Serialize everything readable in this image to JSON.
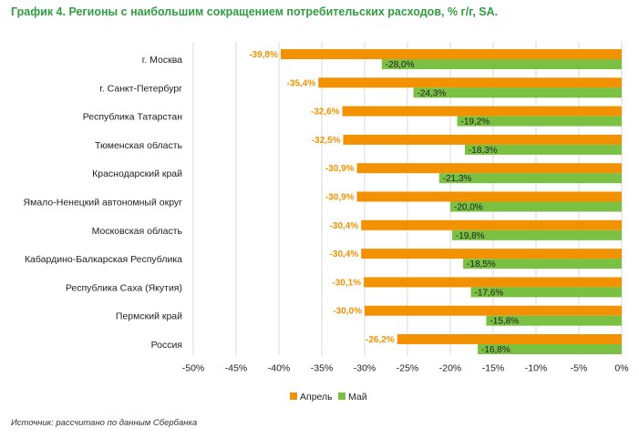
{
  "title": "График 4. Регионы с наибольшим сокращением потребительских расходов, % г/г, SA.",
  "source_note": "Источник: рассчитано по данным Сбербанка",
  "colors": {
    "april": "#f39200",
    "may": "#7ac143",
    "title": "#2e9e3f",
    "grid": "#d9d9d9"
  },
  "chart_data": {
    "type": "bar",
    "orientation": "horizontal",
    "categories": [
      "г. Москва",
      "г. Санкт-Петербург",
      "Республика Татарстан",
      "Тюменская область",
      "Краснодарский край",
      "Ямало-Ненецкий автономный округ",
      "Московская область",
      "Кабардино-Балкарская Республика",
      "Республика Саха (Якутия)",
      "Пермский край",
      "Россия"
    ],
    "series": [
      {
        "name": "Апрель",
        "values": [
          -39.8,
          -35.4,
          -32.6,
          -32.5,
          -30.9,
          -30.9,
          -30.4,
          -30.4,
          -30.1,
          -30.0,
          -26.2
        ],
        "labels": [
          "-39,8%",
          "-35,4%",
          "-32,6%",
          "-32,5%",
          "-30,9%",
          "-30,9%",
          "-30,4%",
          "-30,4%",
          "-30,1%",
          "-30,0%",
          "-26,2%"
        ]
      },
      {
        "name": "Май",
        "values": [
          -28.0,
          -24.3,
          -19.2,
          -18.3,
          -21.3,
          -20.0,
          -19.8,
          -18.5,
          -17.6,
          -15.8,
          -16.8
        ],
        "labels": [
          "-28,0%",
          "-24,3%",
          "-19,2%",
          "-18,3%",
          "-21,3%",
          "-20,0%",
          "-19,8%",
          "-18,5%",
          "-17,6%",
          "-15,8%",
          "-16,8%"
        ]
      }
    ],
    "x_ticks": [
      -50,
      -45,
      -40,
      -35,
      -30,
      -25,
      -20,
      -15,
      -10,
      -5,
      0
    ],
    "x_tick_labels": [
      "-50%",
      "-45%",
      "-40%",
      "-35%",
      "-30%",
      "-25%",
      "-20%",
      "-15%",
      "-10%",
      "-5%",
      "0%"
    ],
    "xlim": [
      -50,
      0
    ],
    "grid": "vertical",
    "legend_position": "bottom"
  }
}
